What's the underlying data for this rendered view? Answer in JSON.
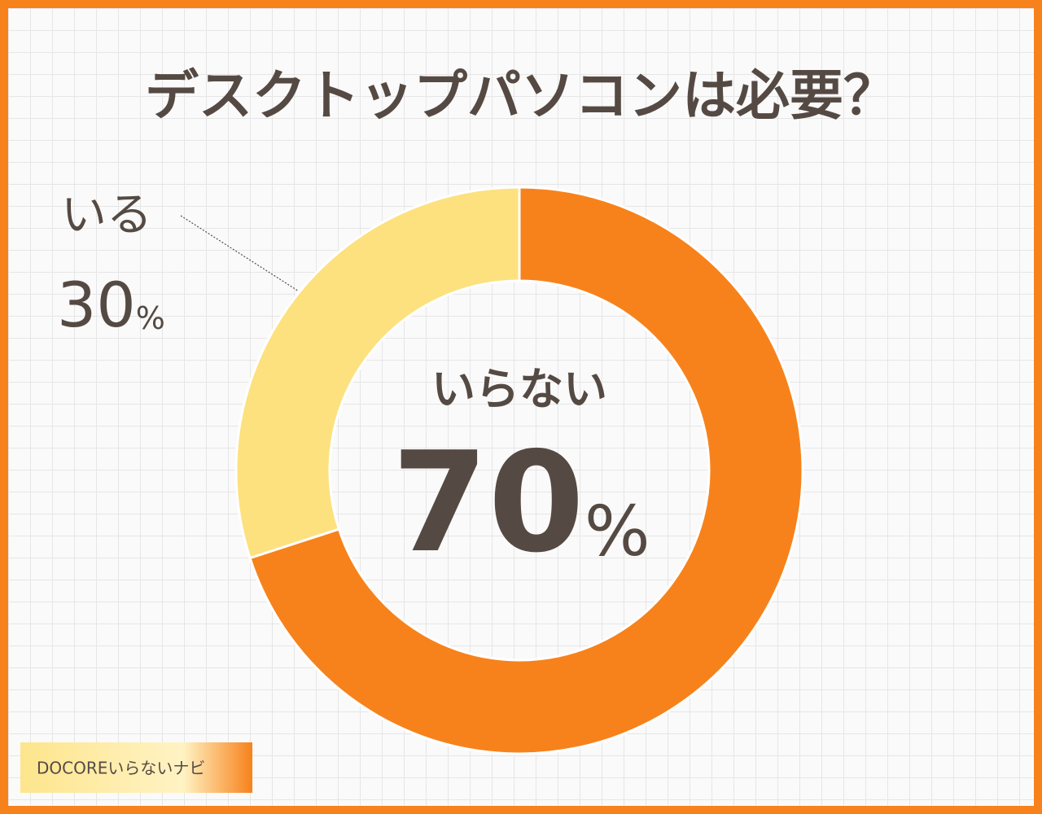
{
  "chart_data": {
    "type": "donut",
    "title": "デスクトップパソコンは必要？",
    "categories": [
      "いらない",
      "いる"
    ],
    "values": [
      70,
      30
    ],
    "value_labels": [
      "70%",
      "30%"
    ],
    "colors": [
      "#f7821b",
      "#fde17f"
    ],
    "watermark": "DOCOREいらないナビ"
  }
}
